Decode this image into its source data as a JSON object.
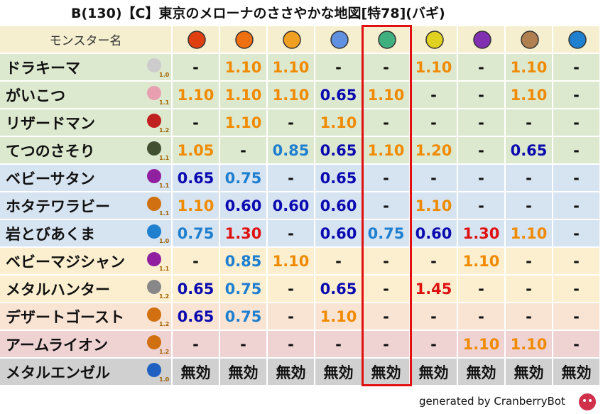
{
  "title": "B(130)【C】東京のメローナのささやかな地図[特78](バギ)",
  "header": {
    "name_label": "モンスター名"
  },
  "rows": [
    {
      "name": "ドラキーマ",
      "level": "1.0",
      "values": [
        "-",
        "1.10",
        "1.10",
        "-",
        "-",
        "1.10",
        "-",
        "1.10",
        "-"
      ]
    },
    {
      "name": "がいこつ",
      "level": "1.1",
      "values": [
        "1.10",
        "1.10",
        "1.10",
        "0.65",
        "1.10",
        "-",
        "-",
        "1.10",
        "-"
      ]
    },
    {
      "name": "リザードマン",
      "level": "1.2",
      "values": [
        "-",
        "1.10",
        "-",
        "1.10",
        "-",
        "-",
        "-",
        "-",
        "-"
      ]
    },
    {
      "name": "てつのさそり",
      "level": "1.1",
      "values": [
        "1.05",
        "-",
        "0.85",
        "0.65",
        "1.10",
        "1.20",
        "-",
        "0.65",
        "-"
      ]
    },
    {
      "name": "ベビーサタン",
      "level": "1.1",
      "values": [
        "0.65",
        "0.75",
        "-",
        "0.65",
        "-",
        "-",
        "-",
        "-",
        "-"
      ]
    },
    {
      "name": "ホタテワラビー",
      "level": "1.1",
      "values": [
        "1.10",
        "0.60",
        "0.60",
        "0.60",
        "-",
        "1.10",
        "-",
        "-",
        "-"
      ]
    },
    {
      "name": "岩とびあくま",
      "level": "1.0",
      "values": [
        "0.75",
        "1.30",
        "-",
        "0.60",
        "0.75",
        "0.60",
        "1.30",
        "1.10",
        "-"
      ]
    },
    {
      "name": "ベビーマジシャン",
      "level": "1.1",
      "values": [
        "-",
        "0.85",
        "1.10",
        "-",
        "-",
        "-",
        "1.10",
        "-",
        "-"
      ]
    },
    {
      "name": "メタルハンター",
      "level": "1.2",
      "values": [
        "0.65",
        "0.75",
        "-",
        "0.65",
        "-",
        "1.45",
        "-",
        "-",
        "-"
      ]
    },
    {
      "name": "デザートゴースト",
      "level": "1.2",
      "values": [
        "0.65",
        "0.75",
        "-",
        "1.10",
        "-",
        "-",
        "-",
        "-",
        "-"
      ]
    },
    {
      "name": "アームライオン",
      "level": "1.2",
      "values": [
        "-",
        "-",
        "-",
        "-",
        "-",
        "-",
        "1.10",
        "1.10",
        "-"
      ]
    },
    {
      "name": "メタルエンゼル",
      "level": "1.0",
      "values": [
        "無効",
        "無効",
        "無効",
        "無効",
        "無効",
        "無効",
        "無効",
        "無効",
        "無効"
      ]
    }
  ],
  "footer": "generated by CranberryBot"
}
